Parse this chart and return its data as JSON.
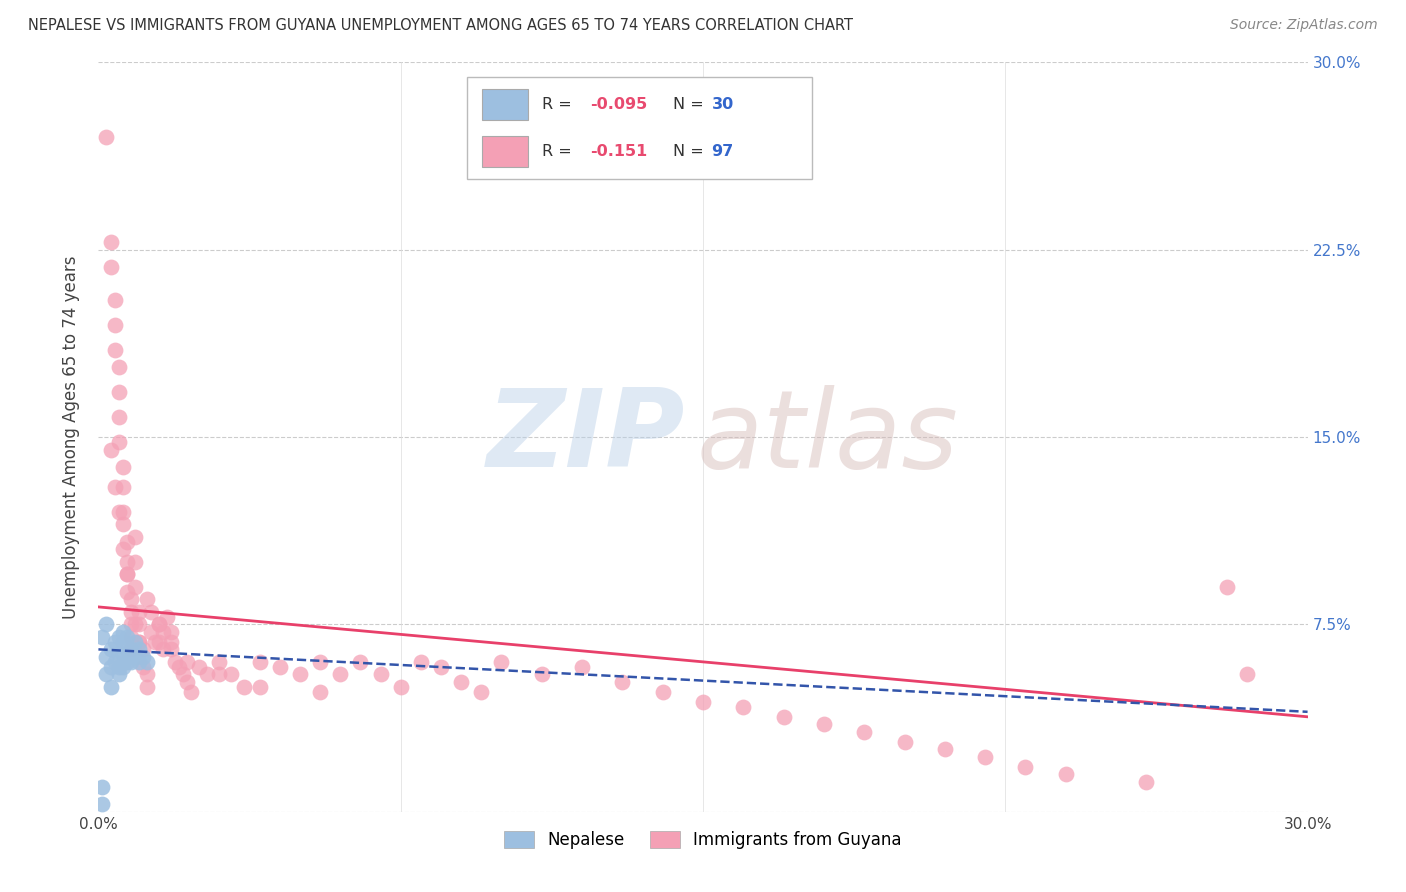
{
  "title": "NEPALESE VS IMMIGRANTS FROM GUYANA UNEMPLOYMENT AMONG AGES 65 TO 74 YEARS CORRELATION CHART",
  "source": "Source: ZipAtlas.com",
  "ylabel": "Unemployment Among Ages 65 to 74 years",
  "xlim": [
    0,
    0.3
  ],
  "ylim": [
    0,
    0.3
  ],
  "nepalese_R": -0.095,
  "nepalese_N": 30,
  "guyana_R": -0.151,
  "guyana_N": 97,
  "nepalese_color": "#9dbfe0",
  "guyana_color": "#f4a0b5",
  "nepalese_line_color": "#3355aa",
  "guyana_line_color": "#e8406a",
  "background_color": "#ffffff",
  "grid_color": "#cccccc",
  "right_tick_color": "#4477cc",
  "legend_r_color": "#3366cc",
  "legend_n_color": "#3366cc",
  "legend_rv_color": "#e84a6f",
  "title_color": "#333333",
  "source_color": "#888888",
  "ylabel_color": "#444444",
  "xtick_color": "#444444",
  "nepalese_x": [
    0.001,
    0.001,
    0.002,
    0.002,
    0.003,
    0.003,
    0.003,
    0.004,
    0.004,
    0.005,
    0.005,
    0.005,
    0.005,
    0.006,
    0.006,
    0.006,
    0.006,
    0.007,
    0.007,
    0.007,
    0.008,
    0.008,
    0.009,
    0.009,
    0.01,
    0.01,
    0.011,
    0.012,
    0.001,
    0.002
  ],
  "nepalese_y": [
    0.003,
    0.01,
    0.055,
    0.062,
    0.05,
    0.058,
    0.065,
    0.06,
    0.068,
    0.055,
    0.058,
    0.063,
    0.07,
    0.058,
    0.063,
    0.068,
    0.072,
    0.06,
    0.065,
    0.07,
    0.06,
    0.065,
    0.062,
    0.068,
    0.06,
    0.065,
    0.062,
    0.06,
    0.07,
    0.075
  ],
  "guyana_x": [
    0.002,
    0.003,
    0.003,
    0.004,
    0.004,
    0.004,
    0.005,
    0.005,
    0.005,
    0.005,
    0.006,
    0.006,
    0.006,
    0.006,
    0.007,
    0.007,
    0.007,
    0.007,
    0.008,
    0.008,
    0.008,
    0.008,
    0.009,
    0.009,
    0.009,
    0.01,
    0.01,
    0.01,
    0.011,
    0.011,
    0.012,
    0.012,
    0.013,
    0.013,
    0.014,
    0.015,
    0.015,
    0.016,
    0.016,
    0.017,
    0.018,
    0.018,
    0.019,
    0.02,
    0.021,
    0.022,
    0.023,
    0.025,
    0.027,
    0.03,
    0.033,
    0.036,
    0.04,
    0.045,
    0.05,
    0.055,
    0.06,
    0.065,
    0.07,
    0.075,
    0.08,
    0.085,
    0.09,
    0.095,
    0.1,
    0.11,
    0.12,
    0.13,
    0.14,
    0.15,
    0.16,
    0.17,
    0.18,
    0.19,
    0.2,
    0.21,
    0.22,
    0.23,
    0.24,
    0.26,
    0.28,
    0.285,
    0.003,
    0.004,
    0.005,
    0.006,
    0.007,
    0.008,
    0.009,
    0.01,
    0.012,
    0.015,
    0.018,
    0.022,
    0.03,
    0.04,
    0.055
  ],
  "guyana_y": [
    0.27,
    0.228,
    0.218,
    0.205,
    0.195,
    0.185,
    0.178,
    0.168,
    0.158,
    0.148,
    0.138,
    0.13,
    0.12,
    0.115,
    0.108,
    0.1,
    0.095,
    0.088,
    0.08,
    0.075,
    0.07,
    0.065,
    0.11,
    0.1,
    0.09,
    0.08,
    0.075,
    0.068,
    0.065,
    0.058,
    0.055,
    0.05,
    0.08,
    0.072,
    0.068,
    0.075,
    0.068,
    0.072,
    0.065,
    0.078,
    0.072,
    0.065,
    0.06,
    0.058,
    0.055,
    0.052,
    0.048,
    0.058,
    0.055,
    0.06,
    0.055,
    0.05,
    0.06,
    0.058,
    0.055,
    0.06,
    0.055,
    0.06,
    0.055,
    0.05,
    0.06,
    0.058,
    0.052,
    0.048,
    0.06,
    0.055,
    0.058,
    0.052,
    0.048,
    0.044,
    0.042,
    0.038,
    0.035,
    0.032,
    0.028,
    0.025,
    0.022,
    0.018,
    0.015,
    0.012,
    0.09,
    0.055,
    0.145,
    0.13,
    0.12,
    0.105,
    0.095,
    0.085,
    0.075,
    0.068,
    0.085,
    0.075,
    0.068,
    0.06,
    0.055,
    0.05,
    0.048
  ],
  "nepalese_trend": [
    0.065,
    0.04
  ],
  "guyana_trend_start": 0.082,
  "guyana_trend_end": 0.038
}
